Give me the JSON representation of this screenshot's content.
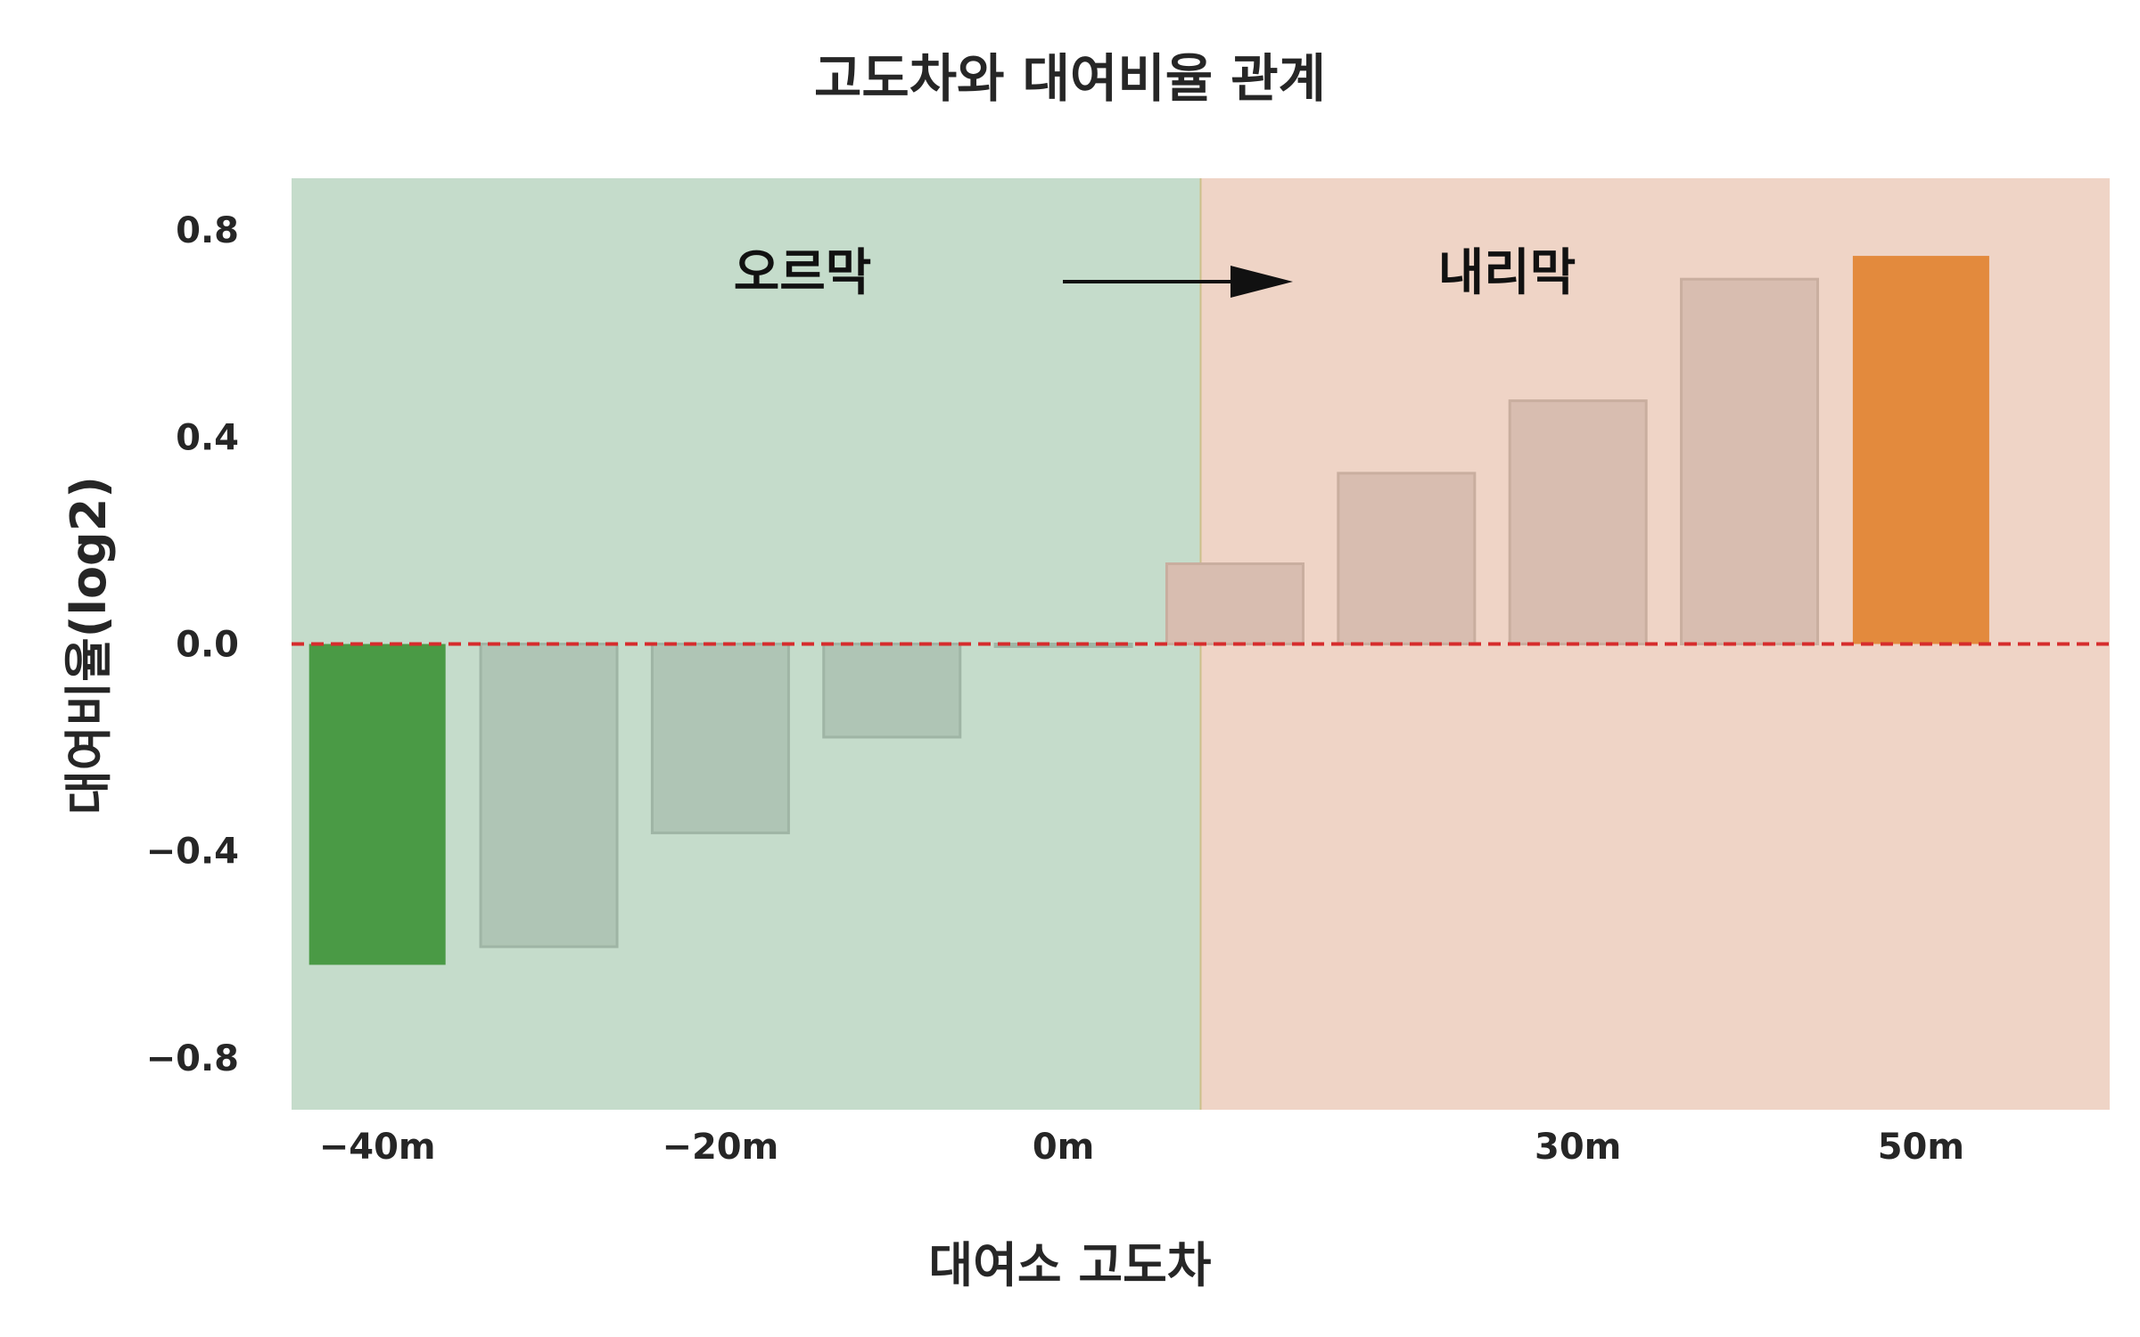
{
  "chart_data": {
    "type": "bar",
    "title": "고도차와 대여비율 관계",
    "xlabel": "대여소 고도차",
    "ylabel": "대여비율(log2)",
    "x": [
      -40,
      -30,
      -20,
      -10,
      0,
      10,
      20,
      30,
      40,
      50
    ],
    "x_tick_values": [
      -40,
      -20,
      0,
      30,
      50
    ],
    "x_tick_labels": [
      "−40m",
      "−20m",
      "0m",
      "30m",
      "50m"
    ],
    "values": [
      -0.62,
      -0.585,
      -0.365,
      -0.18,
      -0.005,
      0.155,
      0.33,
      0.47,
      0.705,
      0.75
    ],
    "ylim": [
      -0.9,
      0.9
    ],
    "y_ticks": [
      0.8,
      0.4,
      0.0,
      -0.4,
      -0.8
    ],
    "y_tick_labels": [
      "0.8",
      "0.4",
      "0.0",
      "−0.4",
      "−0.8"
    ],
    "reference_line": {
      "y": 0.0,
      "style": "dashed",
      "color": "#d62c2c"
    },
    "regions": [
      {
        "label": "오르막",
        "x_from": -45,
        "x_to": 8,
        "color": "#c5dccb"
      },
      {
        "label": "내리막",
        "x_from": 8,
        "x_to": 61,
        "color": "#efd4c6"
      }
    ],
    "arrow": {
      "direction": "right"
    },
    "grid": false,
    "colors": {
      "highlight_negative": "#4a9a45",
      "highlight_positive": "#e38a3d",
      "muted_negative": "#afc5b5",
      "muted_positive": "#d8bdb0",
      "uphill_bg": "#c5dccb",
      "downhill_bg": "#efd4c6"
    },
    "highlighted_indices": [
      0,
      9
    ]
  }
}
